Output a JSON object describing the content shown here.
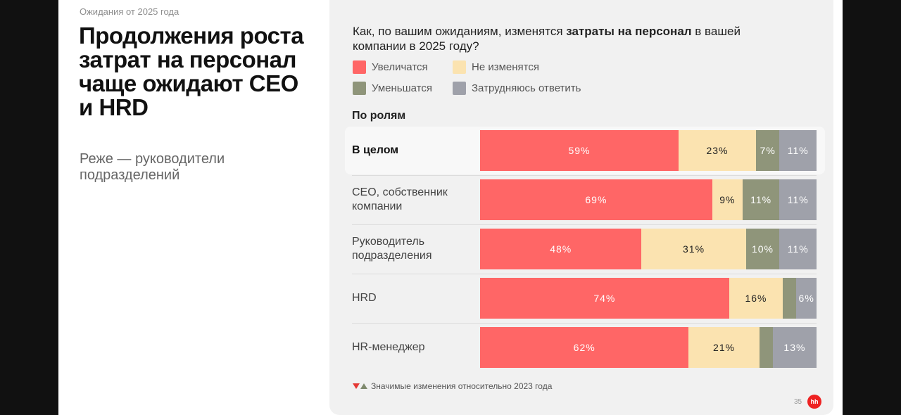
{
  "page": {
    "kicker": "Ожидания от 2025 года",
    "title": "Продолжения роста затрат на персонал чаще ожидают CEO и HRD",
    "subtitle": "Реже — руководители подразделений",
    "page_number": "35",
    "logo_text": "hh"
  },
  "chart_data": {
    "type": "bar",
    "stacked": true,
    "orientation": "horizontal",
    "title_plain": "Как, по вашим ожиданиям, изменятся ",
    "title_bold": "затраты на персонал",
    "title_end": " в вашей компании в 2025 году?",
    "section_label": "По ролям",
    "categories": [
      "В целом",
      "CEO, собственник компании",
      "Руководитель подразделения",
      "HRD",
      "HR-менеджер"
    ],
    "highlighted_category": "В целом",
    "series": [
      {
        "name": "Увеличатся",
        "color": "#ff6666",
        "text_color": "#ffffff",
        "values": [
          59,
          69,
          48,
          74,
          62
        ],
        "labels": [
          "59%",
          "69%",
          "48%",
          "74%",
          "62%"
        ]
      },
      {
        "name": "Не изменятся",
        "color": "#fbe3b0",
        "text_color": "#222222",
        "values": [
          23,
          9,
          31,
          16,
          21
        ],
        "labels": [
          "23%",
          "9%",
          "31%",
          "16%",
          "21%"
        ]
      },
      {
        "name": "Уменьшатся",
        "color": "#8f957a",
        "text_color": "#ffffff",
        "values": [
          7,
          11,
          10,
          4,
          4
        ],
        "labels": [
          "7%",
          "11%",
          "10%",
          "",
          ""
        ]
      },
      {
        "name": "Затрудняюсь ответить",
        "color": "#9fa1aa",
        "text_color": "#ffffff",
        "values": [
          11,
          11,
          11,
          6,
          13
        ],
        "labels": [
          "11%",
          "11%",
          "11%",
          "6%",
          "13%"
        ]
      }
    ],
    "xlim": [
      0,
      100
    ],
    "legend_position": "top-left",
    "footnote": "Значимые изменения относительно 2023 года"
  }
}
